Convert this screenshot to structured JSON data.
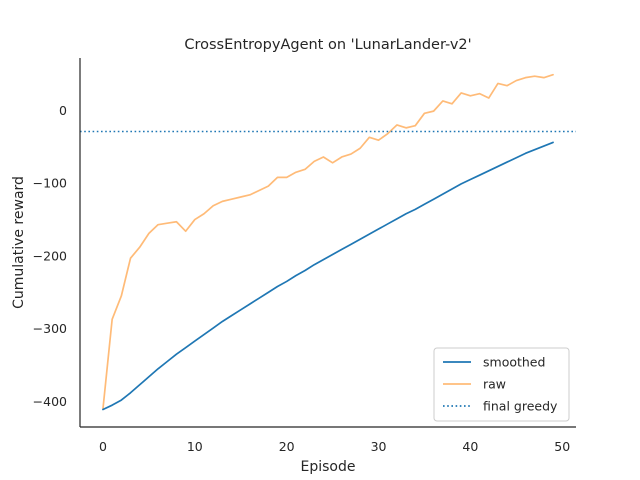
{
  "chart_data": {
    "type": "line",
    "title": "CrossEntropyAgent on 'LunarLander-v2'",
    "xlabel": "Episode",
    "ylabel": "Cumulative reward",
    "xlim": [
      -2.5,
      51.5
    ],
    "ylim": [
      -435,
      72
    ],
    "xticks": [
      0,
      10,
      20,
      30,
      40,
      50
    ],
    "yticks": [
      0,
      -100,
      -200,
      -300,
      -400
    ],
    "ytick_labels": [
      "0",
      "−100",
      "−200",
      "−300",
      "−400"
    ],
    "grid": false,
    "legend_position": "lower right",
    "series": [
      {
        "name": "smoothed",
        "style": "solid",
        "color": "#1f77b4",
        "x": [
          0,
          1,
          2,
          3,
          4,
          5,
          6,
          7,
          8,
          9,
          10,
          11,
          12,
          13,
          14,
          15,
          16,
          17,
          18,
          19,
          20,
          21,
          22,
          23,
          24,
          25,
          26,
          27,
          28,
          29,
          30,
          31,
          32,
          33,
          34,
          35,
          36,
          37,
          38,
          39,
          40,
          41,
          42,
          43,
          44,
          45,
          46,
          47,
          48,
          49
        ],
        "y": [
          -411,
          -405,
          -398,
          -388,
          -377,
          -366,
          -355,
          -345,
          -335,
          -326,
          -317,
          -308,
          -299,
          -290,
          -282,
          -274,
          -266,
          -258,
          -250,
          -242,
          -235,
          -227,
          -220,
          -212,
          -205,
          -198,
          -191,
          -184,
          -177,
          -170,
          -163,
          -156,
          -149,
          -142,
          -136,
          -129,
          -122,
          -115,
          -108,
          -101,
          -95,
          -89,
          -83,
          -77,
          -71,
          -65,
          -59,
          -54,
          -49,
          -44
        ]
      },
      {
        "name": "raw",
        "style": "solid",
        "color": "#ffbb78",
        "x": [
          0,
          1,
          2,
          3,
          4,
          5,
          6,
          7,
          8,
          9,
          10,
          11,
          12,
          13,
          14,
          15,
          16,
          17,
          18,
          19,
          20,
          21,
          22,
          23,
          24,
          25,
          26,
          27,
          28,
          29,
          30,
          31,
          32,
          33,
          34,
          35,
          36,
          37,
          38,
          39,
          40,
          41,
          42,
          43,
          44,
          45,
          46,
          47,
          48,
          49
        ],
        "y": [
          -410,
          -287,
          -255,
          -203,
          -188,
          -169,
          -157,
          -155,
          -153,
          -166,
          -150,
          -142,
          -131,
          -125,
          -122,
          -119,
          -116,
          -110,
          -104,
          -92,
          -92,
          -85,
          -81,
          -70,
          -64,
          -72,
          -64,
          -60,
          -52,
          -37,
          -41,
          -32,
          -20,
          -24,
          -21,
          -4,
          -1,
          13,
          9,
          24,
          20,
          23,
          17,
          37,
          34,
          41,
          45,
          47,
          45,
          49
        ]
      },
      {
        "name": "final greedy",
        "style": "dotted",
        "color": "#1f77b4",
        "hline": -29
      }
    ]
  }
}
